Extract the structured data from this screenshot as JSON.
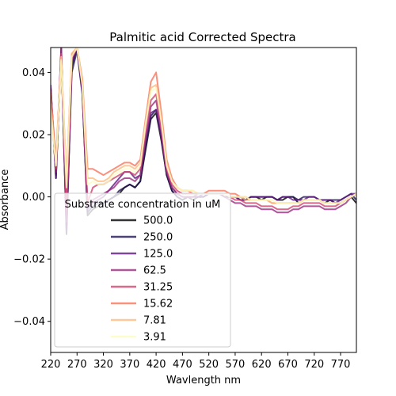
{
  "chart_data": {
    "type": "line",
    "title": "Palmitic acid Corrected Spectra",
    "xlabel": "Wavlength nm",
    "ylabel": "Absorbance",
    "xlim": [
      220,
      800
    ],
    "ylim": [
      -0.05,
      0.048
    ],
    "xticks": [
      "220",
      "270",
      "320",
      "370",
      "420",
      "470",
      "520",
      "570",
      "620",
      "670",
      "720",
      "770"
    ],
    "yticks": [
      "0.04",
      "0.02",
      "0.00",
      "−0.02",
      "−0.04"
    ],
    "grid": false,
    "legend": {
      "title": "Substrate concentration in uM",
      "placement": "lower-left"
    },
    "x": [
      220,
      230,
      240,
      250,
      260,
      270,
      280,
      290,
      300,
      310,
      320,
      330,
      340,
      350,
      360,
      370,
      380,
      390,
      400,
      410,
      420,
      430,
      440,
      450,
      460,
      470,
      480,
      490,
      500,
      510,
      520,
      530,
      540,
      550,
      560,
      570,
      580,
      590,
      600,
      610,
      620,
      630,
      640,
      650,
      660,
      670,
      680,
      690,
      700,
      710,
      720,
      730,
      740,
      750,
      760,
      770,
      780,
      790,
      800
    ],
    "series": [
      {
        "name": "500.0",
        "color": "#000004",
        "values": [
          0.035,
          0.006,
          0.048,
          -0.012,
          0.042,
          0.048,
          0.034,
          -0.006,
          -0.004,
          -0.003,
          -0.002,
          -0.001,
          0.0,
          0.001,
          0.003,
          0.004,
          0.003,
          0.005,
          0.015,
          0.025,
          0.027,
          0.018,
          0.007,
          0.002,
          0.0,
          -0.001,
          0.0,
          -0.001,
          0.0,
          0.0,
          0.001,
          0.001,
          0.001,
          0.0,
          0.0,
          0.0,
          0.0,
          -0.001,
          0.0,
          0.0,
          -0.001,
          0.0,
          0.0,
          -0.001,
          -0.001,
          0.0,
          0.0,
          -0.002,
          -0.001,
          -0.001,
          -0.001,
          -0.001,
          -0.002,
          -0.001,
          -0.002,
          -0.002,
          -0.001,
          0.0,
          -0.002
        ]
      },
      {
        "name": "250.0",
        "color": "#221150",
        "values": [
          0.034,
          0.007,
          0.046,
          -0.01,
          0.04,
          0.047,
          0.033,
          -0.005,
          -0.003,
          -0.002,
          -0.002,
          -0.001,
          0.0,
          0.002,
          0.003,
          0.004,
          0.003,
          0.005,
          0.016,
          0.026,
          0.028,
          0.019,
          0.007,
          0.002,
          0.0,
          -0.001,
          0.0,
          0.0,
          0.0,
          0.0,
          0.001,
          0.001,
          0.001,
          0.0,
          0.0,
          0.0,
          -0.001,
          -0.001,
          0.0,
          0.0,
          0.0,
          0.0,
          0.0,
          -0.001,
          0.0,
          0.0,
          0.0,
          -0.001,
          0.0,
          0.0,
          0.0,
          -0.001,
          -0.001,
          -0.001,
          -0.001,
          -0.001,
          0.0,
          0.001,
          -0.001
        ]
      },
      {
        "name": "125.0",
        "color": "#5f187f",
        "values": [
          0.036,
          0.006,
          0.047,
          -0.011,
          0.043,
          0.048,
          0.034,
          -0.004,
          -0.002,
          -0.001,
          0.0,
          0.002,
          0.004,
          0.006,
          0.008,
          0.008,
          0.006,
          0.007,
          0.018,
          0.027,
          0.028,
          0.019,
          0.008,
          0.003,
          0.001,
          0.0,
          0.0,
          0.0,
          0.0,
          0.001,
          0.001,
          0.001,
          0.001,
          0.001,
          0.0,
          0.0,
          -0.001,
          -0.001,
          0.0,
          0.0,
          0.0,
          0.0,
          0.0,
          -0.001,
          0.0,
          0.0,
          -0.001,
          -0.001,
          -0.001,
          0.0,
          0.0,
          -0.001,
          -0.001,
          -0.001,
          -0.002,
          -0.001,
          0.0,
          0.001,
          0.001
        ]
      },
      {
        "name": "62.5",
        "color": "#982d80",
        "values": [
          0.035,
          0.008,
          0.048,
          -0.008,
          0.044,
          0.048,
          0.035,
          -0.003,
          -0.001,
          0.0,
          0.001,
          0.002,
          0.003,
          0.005,
          0.006,
          0.006,
          0.005,
          0.007,
          0.019,
          0.029,
          0.031,
          0.021,
          0.008,
          0.003,
          0.001,
          0.0,
          0.0,
          0.0,
          0.001,
          0.001,
          0.001,
          0.001,
          0.001,
          0.0,
          -0.001,
          -0.002,
          -0.002,
          -0.003,
          -0.003,
          -0.003,
          -0.004,
          -0.004,
          -0.004,
          -0.005,
          -0.005,
          -0.005,
          -0.004,
          -0.004,
          -0.003,
          -0.003,
          -0.003,
          -0.003,
          -0.004,
          -0.004,
          -0.004,
          -0.003,
          -0.002,
          0.0,
          0.001
        ]
      },
      {
        "name": "31.25",
        "color": "#d3436e",
        "values": [
          0.034,
          0.009,
          0.046,
          -0.004,
          0.045,
          0.048,
          0.036,
          -0.002,
          0.003,
          0.004,
          0.004,
          0.005,
          0.006,
          0.007,
          0.008,
          0.008,
          0.007,
          0.009,
          0.021,
          0.031,
          0.033,
          0.022,
          0.009,
          0.004,
          0.002,
          0.001,
          0.001,
          0.001,
          0.001,
          0.001,
          0.001,
          0.001,
          0.001,
          0.001,
          0.0,
          -0.001,
          -0.001,
          -0.002,
          -0.002,
          -0.002,
          -0.003,
          -0.003,
          -0.003,
          -0.004,
          -0.004,
          -0.004,
          -0.003,
          -0.003,
          -0.002,
          -0.002,
          -0.002,
          -0.002,
          -0.003,
          -0.003,
          -0.003,
          -0.002,
          -0.001,
          0.0,
          0.001
        ]
      },
      {
        "name": "15.62",
        "color": "#f8765c",
        "values": [
          0.033,
          0.012,
          0.045,
          0.005,
          0.046,
          0.048,
          0.038,
          0.009,
          0.009,
          0.008,
          0.007,
          0.008,
          0.009,
          0.01,
          0.011,
          0.011,
          0.01,
          0.012,
          0.025,
          0.037,
          0.04,
          0.027,
          0.012,
          0.006,
          0.003,
          0.002,
          0.002,
          0.001,
          0.001,
          0.001,
          0.002,
          0.002,
          0.002,
          0.002,
          0.001,
          0.001,
          0.0,
          0.0,
          -0.001,
          -0.001,
          -0.001,
          -0.001,
          -0.002,
          -0.002,
          -0.002,
          -0.002,
          -0.002,
          -0.002,
          -0.001,
          -0.001,
          -0.001,
          -0.001,
          -0.002,
          -0.002,
          -0.002,
          -0.002,
          -0.001,
          0.0,
          0.001
        ]
      },
      {
        "name": "7.81",
        "color": "#febb81",
        "values": [
          0.03,
          0.01,
          0.045,
          0.004,
          0.046,
          0.048,
          0.037,
          0.006,
          0.006,
          0.005,
          0.005,
          0.006,
          0.008,
          0.009,
          0.01,
          0.01,
          0.009,
          0.011,
          0.024,
          0.035,
          0.036,
          0.025,
          0.011,
          0.005,
          0.003,
          0.002,
          0.002,
          0.002,
          0.001,
          0.001,
          0.001,
          0.001,
          0.001,
          0.001,
          0.0,
          0.0,
          0.0,
          -0.001,
          -0.001,
          -0.001,
          -0.001,
          -0.001,
          -0.002,
          -0.002,
          -0.002,
          -0.002,
          -0.002,
          -0.002,
          -0.001,
          -0.001,
          -0.001,
          -0.001,
          -0.002,
          -0.002,
          -0.002,
          -0.002,
          -0.001,
          0.0,
          0.001
        ]
      },
      {
        "name": "3.91",
        "color": "#fcfdbf",
        "values": [
          0.028,
          0.01,
          0.044,
          0.003,
          0.045,
          0.048,
          0.036,
          0.004,
          0.005,
          0.004,
          0.004,
          0.005,
          0.007,
          0.008,
          0.009,
          0.009,
          0.008,
          0.01,
          0.023,
          0.034,
          0.035,
          0.024,
          0.01,
          0.005,
          0.003,
          0.002,
          0.002,
          0.002,
          0.001,
          0.001,
          0.001,
          0.001,
          0.001,
          0.001,
          0.0,
          0.0,
          0.0,
          0.0,
          -0.001,
          -0.001,
          -0.001,
          -0.001,
          -0.001,
          -0.002,
          -0.002,
          -0.002,
          -0.002,
          -0.002,
          -0.001,
          -0.001,
          -0.001,
          -0.001,
          -0.002,
          -0.002,
          -0.002,
          -0.002,
          -0.001,
          0.0,
          0.001
        ]
      }
    ]
  }
}
